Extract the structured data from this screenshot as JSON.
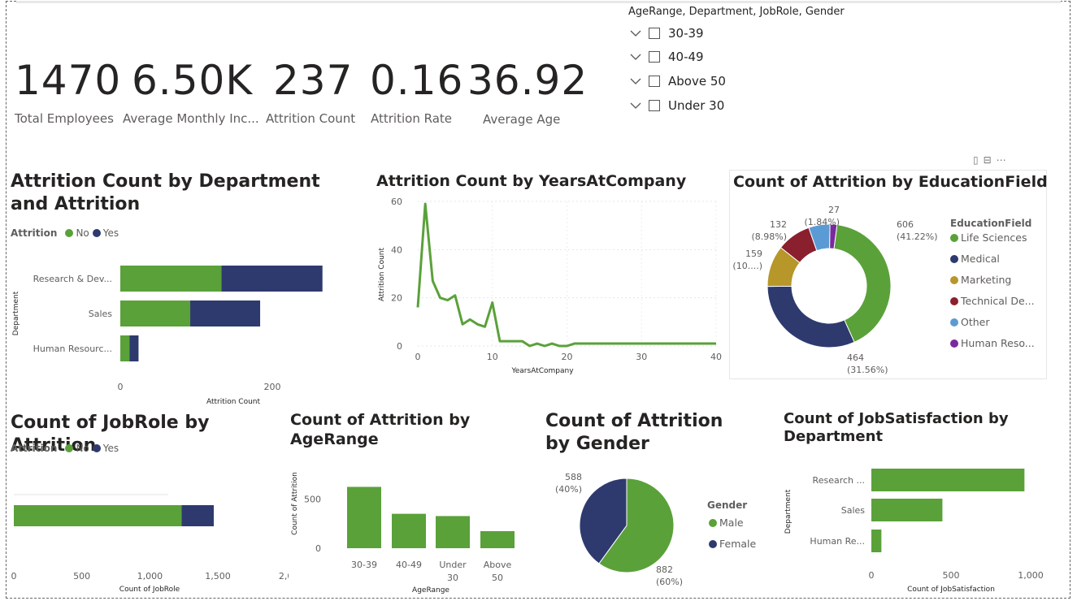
{
  "kpis": [
    {
      "value": "1470",
      "label": "Total Employees"
    },
    {
      "value": "6.50K",
      "label": "Average Monthly Inc..."
    },
    {
      "value": "237",
      "label": "Attrition Count"
    },
    {
      "value": "0.16",
      "label": "Attrition Rate"
    },
    {
      "value": "36.92",
      "label": "Average Age"
    }
  ],
  "slicer": {
    "title": "AgeRange, Department, JobRole, Gender",
    "items": [
      "30-39",
      "40-49",
      "Above 50",
      "Under 30"
    ]
  },
  "colors": {
    "green": "#5aa13a",
    "navy": "#2e3a6e",
    "gold": "#b7962a",
    "maroon": "#8a1f2d",
    "lightblue": "#5b9bd5",
    "purple": "#7a2a9c"
  },
  "chart_data": [
    {
      "id": "dept_attrition",
      "type": "bar",
      "orientation": "horizontal",
      "stacked": true,
      "title": "Attrition Count by Department and Attrition",
      "legend_title": "Attrition",
      "xlabel": "Attrition Count",
      "ylabel": "Department",
      "categories": [
        "Research & Dev...",
        "Sales",
        "Human Resourc..."
      ],
      "series": [
        {
          "name": "No",
          "values": [
            133,
            92,
            12
          ]
        },
        {
          "name": "Yes",
          "values": [
            133,
            92,
            12
          ]
        }
      ],
      "xticks": [
        "0",
        "200"
      ],
      "xlim": [
        0,
        267
      ]
    },
    {
      "id": "years_attrition",
      "type": "line",
      "title": "Attrition Count by YearsAtCompany",
      "xlabel": "YearsAtCompany",
      "ylabel": "Attrition Count",
      "x": [
        0,
        1,
        2,
        3,
        4,
        5,
        6,
        7,
        8,
        9,
        10,
        11,
        12,
        13,
        14,
        15,
        16,
        17,
        18,
        19,
        20,
        21,
        22,
        23,
        24,
        25,
        26,
        27,
        28,
        29,
        30,
        31,
        32,
        33,
        34,
        35,
        36,
        37,
        38,
        39,
        40
      ],
      "y": [
        16,
        59,
        27,
        20,
        19,
        21,
        9,
        11,
        9,
        8,
        18,
        2,
        2,
        2,
        2,
        0,
        1,
        0,
        1,
        0,
        0,
        1,
        1,
        1,
        1,
        1,
        1,
        1,
        1,
        1,
        1,
        1,
        1,
        1,
        1,
        1,
        1,
        1,
        1,
        1,
        1
      ],
      "xticks": [
        "0",
        "10",
        "20",
        "30",
        "40"
      ],
      "yticks": [
        "0",
        "20",
        "40",
        "60"
      ],
      "xlim": [
        0,
        40
      ],
      "ylim": [
        0,
        60
      ]
    },
    {
      "id": "edu_attrition",
      "type": "pie",
      "donut": true,
      "title": "Count of Attrition by EducationField",
      "legend_title": "EducationField",
      "slices": [
        {
          "label": "Life Sciences",
          "value": 606,
          "text": "606 (41.22%)"
        },
        {
          "label": "Medical",
          "value": 464,
          "text": "464 (31.56%)"
        },
        {
          "label": "Marketing",
          "value": 159,
          "text": "159 (10....)"
        },
        {
          "label": "Technical De...",
          "value": 132,
          "text": "132 (8.98%)"
        },
        {
          "label": "Other",
          "value": 82,
          "text": ""
        },
        {
          "label": "Human Reso...",
          "value": 27,
          "text": "27 (1.84%)"
        }
      ]
    },
    {
      "id": "jobrole_attrition",
      "type": "bar",
      "orientation": "horizontal",
      "stacked": true,
      "title": "Count of JobRole by Attrition",
      "legend_title": "Attrition",
      "xlabel": "Count of JobRole",
      "categories": [
        ""
      ],
      "series": [
        {
          "name": "No",
          "values": [
            1233
          ]
        },
        {
          "name": "Yes",
          "values": [
            237
          ]
        }
      ],
      "xticks": [
        "0",
        "500",
        "1,000",
        "1,500",
        "2,0"
      ],
      "xlim": [
        0,
        2000
      ]
    },
    {
      "id": "age_attrition",
      "type": "bar",
      "title": "Count of Attrition by AgeRange",
      "xlabel": "AgeRange",
      "ylabel": "Count of Attrition",
      "categories": [
        "30-39",
        "40-49",
        "Under 30",
        "Above 50"
      ],
      "values": [
        622,
        349,
        326,
        173
      ],
      "yticks": [
        "0",
        "500"
      ],
      "ylim": [
        0,
        700
      ]
    },
    {
      "id": "gender_attrition",
      "type": "pie",
      "title": "Count of Attrition by Gender",
      "legend_title": "Gender",
      "slices": [
        {
          "label": "Male",
          "value": 882,
          "text": "882 (60%)"
        },
        {
          "label": "Female",
          "value": 588,
          "text": "588 (40%)"
        }
      ]
    },
    {
      "id": "jobsat_dept",
      "type": "bar",
      "orientation": "horizontal",
      "title": "Count of JobSatisfaction by Department",
      "xlabel": "Count of JobSatisfaction",
      "ylabel": "Department",
      "categories": [
        "Research ...",
        "Sales",
        "Human Re..."
      ],
      "values": [
        961,
        446,
        63
      ],
      "xticks": [
        "0",
        "500",
        "1,000"
      ],
      "xlim": [
        0,
        1000
      ]
    }
  ]
}
